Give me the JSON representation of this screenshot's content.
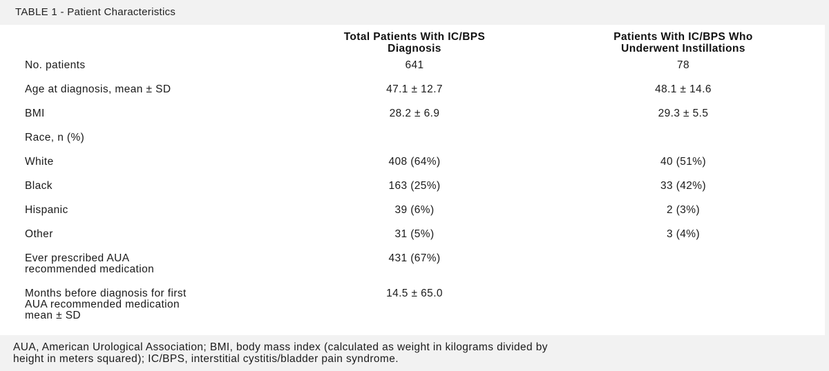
{
  "table": {
    "title": "TABLE 1 - Patient Characteristics",
    "headers": [
      "Total Patients With IC/BPS\nDiagnosis",
      "Patients With IC/BPS Who\nUnderwent Instillations"
    ],
    "rows": [
      {
        "label": "No. patients",
        "total": "641",
        "instillations": "78"
      },
      {
        "label": "Age at diagnosis, mean ± SD",
        "total": "47.1 ± 12.7",
        "instillations": "48.1 ± 14.6"
      },
      {
        "label": "BMI",
        "total": "28.2 ± 6.9",
        "instillations": "29.3 ± 5.5"
      },
      {
        "label": "Race, n (%)",
        "total": "",
        "instillations": ""
      },
      {
        "label": "White",
        "total": "408 (64%)",
        "instillations": "40 (51%)"
      },
      {
        "label": "Black",
        "total": "163 (25%)",
        "instillations": "33 (42%)"
      },
      {
        "label": "Hispanic",
        "total": "39 (6%)",
        "instillations": "2 (3%)"
      },
      {
        "label": "Other",
        "total": "31 (5%)",
        "instillations": "3 (4%)"
      },
      {
        "label": "Ever prescribed AUA\nrecommended medication",
        "total": "431 (67%)",
        "instillations": ""
      },
      {
        "label": "Months before diagnosis for first\nAUA recommended medication\nmean ± SD",
        "total": "14.5 ± 65.0",
        "instillations": ""
      }
    ],
    "footnote": "AUA, American Urological Association; BMI, body mass index (calculated as weight in kilograms divided by\nheight in meters squared); IC/BPS, interstitial cystitis/bladder pain syndrome."
  }
}
